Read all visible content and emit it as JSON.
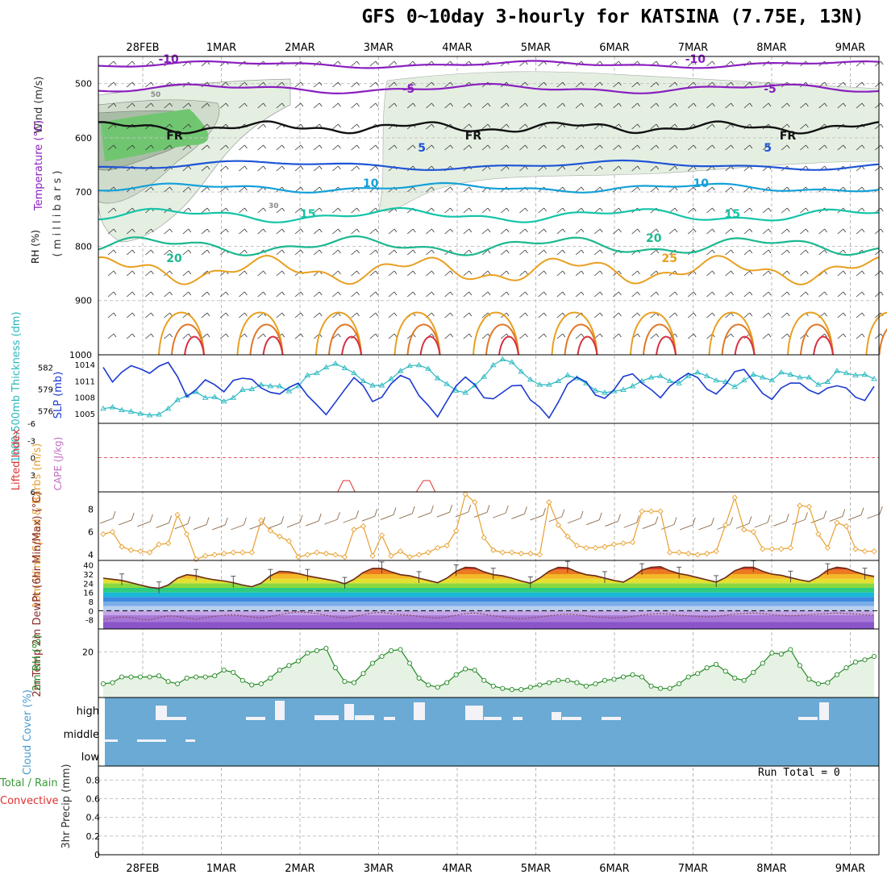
{
  "title": "GFS 0~10day 3-hourly for KATSINA (7.75E, 13N)",
  "run_total": "Run Total = 0",
  "date_labels": [
    "28FEB",
    "1MAR",
    "2MAR",
    "3MAR",
    "4MAR",
    "5MAR",
    "6MAR",
    "7MAR",
    "8MAR",
    "9MAR"
  ],
  "colors": {
    "sounding_green": "#6dc66d",
    "temp_purple": "#8a1fbf",
    "temp_blue": "#1f55d6",
    "temp_cyan": "#14a0d8",
    "temp_teal": "#14c4a8",
    "temp_orange": "#e8a020",
    "slp": "#1c3ad0",
    "thickness": "#28b8c0",
    "lifted_index": "#e03030",
    "wind_speed": "#e8a030",
    "rh_line": "#228822",
    "cloud": "#6aaad4"
  },
  "chart_data": [
    {
      "type": "line",
      "name": "sounding",
      "ylabel_parts": [
        "Wind (m/s)",
        "Temperature (°C)",
        "RH (%)"
      ],
      "ylabel_unit": "( m i l l i b a r s )",
      "y_ticks": [
        500,
        600,
        700,
        800,
        900,
        1000
      ],
      "ylim": [
        450,
        1000
      ],
      "contour_labels": [
        {
          "text": "-10",
          "date": 0.2
        },
        {
          "text": "-10",
          "date": 6.9
        },
        {
          "text": "-5",
          "date": 3.3
        },
        {
          "text": "-5",
          "date": 7.9
        },
        {
          "text": "FR",
          "date": 0.3
        },
        {
          "text": "FR",
          "date": 4.1
        },
        {
          "text": "FR",
          "date": 8.1
        },
        {
          "text": "5",
          "date": 3.5
        },
        {
          "text": "5",
          "date": 7.9
        },
        {
          "text": "10",
          "date": 2.8
        },
        {
          "text": "10",
          "date": 7.0
        },
        {
          "text": "15",
          "date": 2.0
        },
        {
          "text": "15",
          "date": 7.4
        },
        {
          "text": "20",
          "date": 0.3
        },
        {
          "text": "20",
          "date": 6.4
        },
        {
          "text": "25",
          "date": 6.6
        },
        {
          "text": "50",
          "date": 0.1
        },
        {
          "text": "30",
          "date": 1.6
        }
      ]
    },
    {
      "type": "line",
      "name": "slp_thickness",
      "ylabel_left": "1000-500mb Thickness (dm)",
      "ylabel_right": "SLP (mb)",
      "left_ticks": [
        576,
        579,
        582
      ],
      "right_ticks": [
        1005,
        1008,
        1011,
        1014
      ],
      "series": [
        {
          "name": "SLP",
          "values": [
            1013.5,
            1010.8,
            1012.6,
            1013.8,
            1013.2,
            1012.4,
            1013.7,
            1014.4,
            1011.8,
            1008.1,
            1009.4,
            1011.2,
            1010.3,
            1009.0,
            1011.1,
            1011.5,
            1011.3,
            1009.7,
            1008.9,
            1008.6,
            1009.8,
            1010.6,
            1008.3,
            1006.6,
            1004.8,
            1007.1,
            1009.4,
            1011.6,
            1010.1,
            1007.2,
            1008.0,
            1010.5,
            1012.0,
            1011.3,
            1008.3,
            1006.5,
            1004.4,
            1007.3,
            1010.1,
            1011.7,
            1010.3,
            1007.9,
            1007.7,
            1008.9,
            1010.1,
            1010.2,
            1007.5,
            1006.2,
            1004.2,
            1007.1,
            1010.4,
            1011.7,
            1010.8,
            1008.4,
            1007.8,
            1009.4,
            1011.8,
            1012.3,
            1010.6,
            1009.4,
            1007.9,
            1010.0,
            1011.3,
            1012.4,
            1011.6,
            1009.5,
            1008.6,
            1010.3,
            1012.7,
            1013.1,
            1010.9,
            1008.7,
            1007.6,
            1009.7,
            1010.6,
            1010.6,
            1009.3,
            1008.6,
            1009.7,
            1010.1,
            1009.7,
            1008.0,
            1007.4,
            1010.0
          ]
        },
        {
          "name": "Thickness",
          "values": [
            576.3,
            576.5,
            576.1,
            575.9,
            575.6,
            575.4,
            575.5,
            576.3,
            577.5,
            578.1,
            578.6,
            577.8,
            577.9,
            577.3,
            577.8,
            578.9,
            579.0,
            579.6,
            579.4,
            579.4,
            578.7,
            579.4,
            580.9,
            581.2,
            582.0,
            582.5,
            581.9,
            581.2,
            580.1,
            579.5,
            579.5,
            580.4,
            581.5,
            582.2,
            582.3,
            581.8,
            580.5,
            579.7,
            578.8,
            578.5,
            579.5,
            580.7,
            582.3,
            583.1,
            582.7,
            581.4,
            580.3,
            579.6,
            579.6,
            580.1,
            580.9,
            580.5,
            579.8,
            578.8,
            578.5,
            578.7,
            578.9,
            579.4,
            580.1,
            580.6,
            580.8,
            580.1,
            579.8,
            580.8,
            581.3,
            580.8,
            580.2,
            580.0,
            579.3,
            580.2,
            581.0,
            580.6,
            580.2,
            581.3,
            581.0,
            580.6,
            580.6,
            579.6,
            580.0,
            581.5,
            581.2,
            580.9,
            581.0,
            580.4
          ]
        }
      ]
    },
    {
      "type": "line",
      "name": "lifted_index_cape",
      "ylabel_left": "Lifted Index",
      "ylabel_right": "CAPE (J/kg)",
      "y_ticks": [
        -6,
        -3,
        0,
        3,
        6
      ],
      "ylim": [
        -6,
        6
      ]
    },
    {
      "type": "line",
      "name": "wind10m",
      "ylabel": "10m Wind Speed & Barbs (m/s)",
      "y_ticks": [
        4,
        6,
        8
      ],
      "ylim": [
        3.5,
        9.5
      ],
      "values": [
        5.8,
        6.0,
        4.7,
        4.4,
        4.3,
        4.2,
        4.9,
        5.0,
        7.5,
        5.8,
        3.6,
        3.9,
        4.0,
        4.1,
        4.2,
        4.2,
        4.2,
        7.0,
        6.1,
        5.6,
        5.2,
        3.8,
        4.0,
        4.2,
        4.1,
        4.0,
        3.8,
        6.2,
        6.5,
        3.9,
        5.7,
        3.9,
        4.3,
        3.8,
        4.0,
        4.2,
        4.6,
        4.8,
        6.1,
        9.3,
        8.6,
        5.5,
        4.4,
        4.2,
        4.2,
        4.1,
        4.1,
        4.0,
        8.6,
        6.6,
        5.6,
        4.8,
        4.6,
        4.6,
        4.7,
        4.9,
        5.0,
        5.1,
        7.8,
        7.8,
        7.8,
        4.2,
        4.2,
        4.1,
        4.0,
        4.1,
        4.3,
        6.6,
        9.0,
        6.2,
        6.0,
        4.5,
        4.5,
        4.5,
        4.6,
        8.3,
        8.2,
        5.8,
        4.6,
        6.8,
        6.5,
        4.5,
        4.3,
        4.3
      ]
    },
    {
      "type": "area",
      "name": "temp2m",
      "ylabel": "2m Temp 2m DewPt (6hr Min/Max) (°C)",
      "y_ticks": [
        -8,
        0,
        8,
        16,
        24,
        32,
        40
      ],
      "ylim": [
        -16,
        44
      ],
      "series": [
        {
          "name": "Temp",
          "values": [
            28.5,
            27.5,
            26.5,
            24.5,
            22.5,
            20.5,
            19.5,
            22.5,
            28.5,
            31.5,
            30.5,
            28.5,
            27.0,
            26.0,
            24.5,
            22.5,
            21.0,
            24.0,
            30.5,
            34.5,
            34.0,
            32.5,
            30.5,
            29.0,
            27.5,
            26.0,
            23.5,
            27.5,
            33.5,
            37.0,
            37.0,
            34.0,
            31.5,
            30.5,
            28.5,
            26.5,
            24.5,
            28.5,
            34.5,
            38.0,
            37.5,
            34.0,
            31.5,
            30.5,
            28.5,
            26.0,
            24.0,
            28.5,
            34.5,
            38.0,
            37.5,
            34.0,
            31.5,
            30.5,
            28.5,
            26.5,
            25.0,
            29.5,
            35.5,
            38.0,
            38.5,
            35.0,
            32.5,
            31.0,
            29.0,
            27.0,
            25.0,
            29.0,
            35.0,
            38.0,
            38.0,
            34.5,
            32.0,
            31.0,
            29.0,
            27.0,
            25.5,
            29.5,
            35.5,
            38.0,
            37.0,
            34.0,
            31.5,
            30.0
          ]
        },
        {
          "name": "DewPt",
          "values": [
            -8.0,
            -6.5,
            -5.5,
            -6.0,
            -7.5,
            -8.0,
            -6.0,
            -4.5,
            -5.0,
            -6.5,
            -7.5,
            -6.0,
            -5.0,
            -4.0,
            -3.5,
            -4.5,
            -5.5,
            -6.5,
            -5.0,
            -3.5,
            -2.0,
            -1.0,
            -1.5,
            -2.5,
            -4.0,
            -5.5,
            -6.5,
            -5.0,
            -3.5,
            -2.0,
            -1.5,
            -2.5,
            -3.5,
            -4.0,
            -5.0,
            -6.0,
            -6.5,
            -5.5,
            -4.0,
            -2.5,
            -2.0,
            -3.0,
            -4.5,
            -5.5,
            -6.5,
            -7.0,
            -6.5,
            -5.5,
            -4.5,
            -3.5,
            -3.0,
            -3.5,
            -4.5,
            -5.5,
            -6.0,
            -6.5,
            -6.0,
            -5.0,
            -4.0,
            -3.0,
            -2.5,
            -3.0,
            -4.0,
            -4.5,
            -5.0,
            -5.5,
            -5.0,
            -4.0,
            -3.0,
            -2.5,
            -2.0,
            -2.5,
            -3.5,
            -4.0,
            -4.5,
            -4.0,
            -3.5,
            -3.0,
            -2.5,
            -2.0,
            -2.5,
            -3.0,
            -3.5,
            -4.0
          ]
        }
      ]
    },
    {
      "type": "area",
      "name": "rh2m",
      "ylabel": "2m RH (%)",
      "y_ticks": [
        20
      ],
      "ylim": [
        0,
        30
      ],
      "values": [
        6.0,
        6.5,
        9.0,
        9.0,
        9.0,
        9.0,
        9.5,
        7.0,
        6.0,
        8.5,
        9.0,
        9.0,
        9.5,
        12.0,
        11.0,
        7.5,
        5.5,
        6.0,
        8.5,
        12.0,
        14.0,
        16.0,
        19.5,
        20.5,
        21.5,
        13.0,
        7.0,
        6.5,
        10.5,
        15.0,
        18.0,
        20.5,
        21.0,
        15.0,
        8.5,
        5.5,
        4.5,
        6.5,
        10.0,
        12.5,
        12.0,
        7.5,
        5.0,
        4.0,
        3.5,
        3.5,
        4.5,
        5.5,
        6.5,
        7.5,
        7.5,
        6.5,
        5.0,
        6.0,
        7.5,
        8.0,
        9.0,
        10.0,
        9.0,
        5.0,
        4.0,
        4.0,
        6.0,
        9.0,
        10.5,
        13.0,
        14.5,
        11.5,
        8.5,
        7.5,
        11.0,
        15.0,
        19.5,
        19.0,
        21.0,
        14.0,
        8.0,
        6.0,
        6.5,
        10.0,
        13.0,
        15.5,
        16.5,
        18.0
      ]
    },
    {
      "type": "bar",
      "name": "cloud_cover",
      "ylabel": "Cloud Cover (%)",
      "levels": [
        "high",
        "middle",
        "low"
      ]
    },
    {
      "type": "bar",
      "name": "precip",
      "ylabel_left_parts": [
        "Total / Rain",
        "Convective"
      ],
      "ylabel": "3hr Precip (mm)",
      "y_ticks": [
        0,
        0.2,
        0.4,
        0.6,
        0.8
      ],
      "ylim": [
        0,
        0.95
      ],
      "values": []
    }
  ]
}
